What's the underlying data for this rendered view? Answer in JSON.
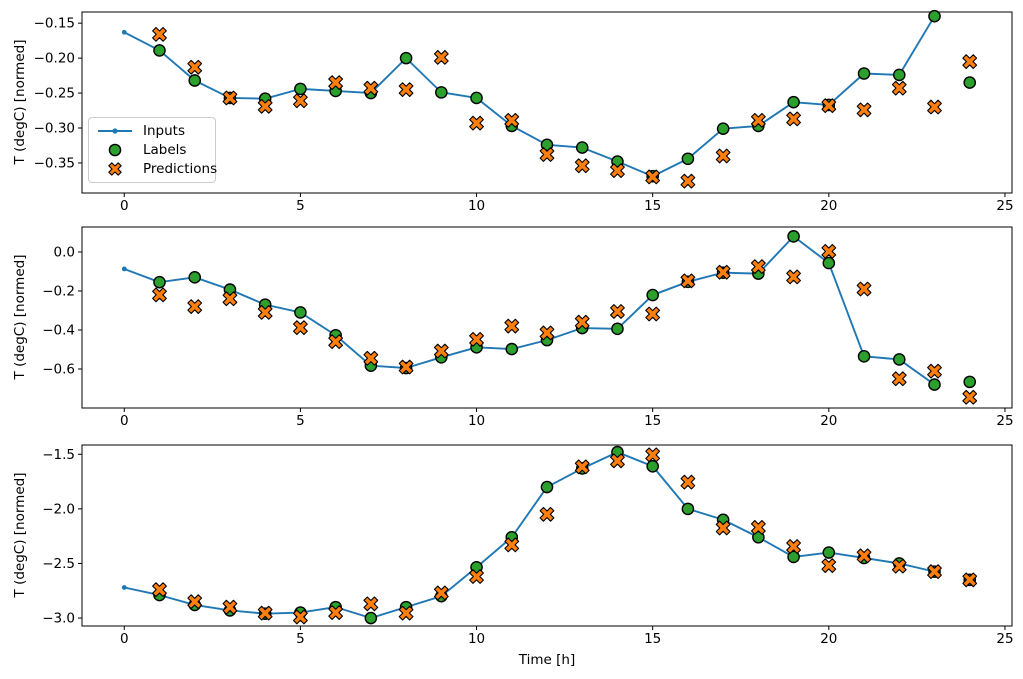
{
  "figure": {
    "background": "#ffffff",
    "xlabel": "Time [h]",
    "ylabel": "T (degC) [normed]"
  },
  "colors": {
    "inputs": "#1f77b4",
    "labels": "#2ca02c",
    "predictions": "#ff7f0e",
    "marker_edge": "#000000",
    "axis": "#000000",
    "legend_border": "#cccccc"
  },
  "legend": {
    "position": "upper-left-inside-first-subplot",
    "items": [
      {
        "label": "Inputs",
        "marker": "line-with-dot"
      },
      {
        "label": "Labels",
        "marker": "circle"
      },
      {
        "label": "Predictions",
        "marker": "X"
      }
    ]
  },
  "chart_data": [
    {
      "type": "line",
      "title": "",
      "xlabel": "",
      "ylabel": "T (degC) [normed]",
      "grid": false,
      "xlim": [
        -1.2,
        25.2
      ],
      "ylim": [
        -0.393,
        -0.134
      ],
      "xticks": [
        0,
        5,
        10,
        15,
        20,
        25
      ],
      "xtick_labels": [
        "0",
        "5",
        "10",
        "15",
        "20",
        "25"
      ],
      "yticks": [
        -0.15,
        -0.2,
        -0.25,
        -0.3,
        -0.35
      ],
      "ytick_labels": [
        "−0.15",
        "−0.20",
        "−0.25",
        "−0.30",
        "−0.35"
      ],
      "series": [
        {
          "name": "Inputs",
          "kind": "line",
          "marker": "dot",
          "x": [
            0,
            1,
            2,
            3,
            4,
            5,
            6,
            7,
            8,
            9,
            10,
            11,
            12,
            13,
            14,
            15,
            16,
            17,
            18,
            19,
            20,
            21,
            22,
            23
          ],
          "values": [
            -0.163,
            -0.189,
            -0.232,
            -0.257,
            -0.258,
            -0.244,
            -0.247,
            -0.25,
            -0.2,
            -0.249,
            -0.257,
            -0.297,
            -0.324,
            -0.328,
            -0.348,
            -0.369,
            -0.344,
            -0.301,
            -0.297,
            -0.263,
            -0.267,
            -0.222,
            -0.224,
            -0.14
          ]
        },
        {
          "name": "Labels",
          "kind": "scatter",
          "marker": "circle",
          "x": [
            1,
            2,
            3,
            4,
            5,
            6,
            7,
            8,
            9,
            10,
            11,
            12,
            13,
            14,
            15,
            16,
            17,
            18,
            19,
            20,
            21,
            22,
            23,
            24
          ],
          "values": [
            -0.189,
            -0.232,
            -0.257,
            -0.258,
            -0.244,
            -0.247,
            -0.25,
            -0.2,
            -0.249,
            -0.257,
            -0.297,
            -0.324,
            -0.328,
            -0.348,
            -0.369,
            -0.344,
            -0.301,
            -0.297,
            -0.263,
            -0.267,
            -0.222,
            -0.224,
            -0.14,
            -0.235
          ]
        },
        {
          "name": "Predictions",
          "kind": "scatter",
          "marker": "X",
          "x": [
            1,
            2,
            3,
            4,
            5,
            6,
            7,
            8,
            9,
            10,
            11,
            12,
            13,
            14,
            15,
            16,
            17,
            18,
            19,
            20,
            21,
            22,
            23,
            24
          ],
          "values": [
            -0.166,
            -0.213,
            -0.257,
            -0.269,
            -0.261,
            -0.235,
            -0.243,
            -0.245,
            -0.199,
            -0.293,
            -0.289,
            -0.338,
            -0.354,
            -0.361,
            -0.37,
            -0.376,
            -0.34,
            -0.289,
            -0.287,
            -0.268,
            -0.274,
            -0.243,
            -0.27,
            -0.205
          ]
        }
      ]
    },
    {
      "type": "line",
      "title": "",
      "xlabel": "",
      "ylabel": "T (degC) [normed]",
      "grid": false,
      "xlim": [
        -1.2,
        25.2
      ],
      "ylim": [
        -0.8,
        0.128
      ],
      "xticks": [
        0,
        5,
        10,
        15,
        20,
        25
      ],
      "xtick_labels": [
        "0",
        "5",
        "10",
        "15",
        "20",
        "25"
      ],
      "yticks": [
        0.0,
        -0.2,
        -0.4,
        -0.6
      ],
      "ytick_labels": [
        "0.0",
        "−0.2",
        "−0.4",
        "−0.6"
      ],
      "series": [
        {
          "name": "Inputs",
          "kind": "line",
          "marker": "dot",
          "x": [
            0,
            1,
            2,
            3,
            4,
            5,
            6,
            7,
            8,
            9,
            10,
            11,
            12,
            13,
            14,
            15,
            16,
            17,
            18,
            19,
            20,
            21,
            22,
            23
          ],
          "values": [
            -0.087,
            -0.155,
            -0.13,
            -0.193,
            -0.27,
            -0.31,
            -0.427,
            -0.583,
            -0.595,
            -0.54,
            -0.489,
            -0.498,
            -0.452,
            -0.39,
            -0.394,
            -0.221,
            -0.153,
            -0.106,
            -0.111,
            0.08,
            -0.057,
            -0.535,
            -0.551,
            -0.68
          ]
        },
        {
          "name": "Labels",
          "kind": "scatter",
          "marker": "circle",
          "x": [
            1,
            2,
            3,
            4,
            5,
            6,
            7,
            8,
            9,
            10,
            11,
            12,
            13,
            14,
            15,
            16,
            17,
            18,
            19,
            20,
            21,
            22,
            23,
            24
          ],
          "values": [
            -0.155,
            -0.13,
            -0.193,
            -0.27,
            -0.31,
            -0.427,
            -0.583,
            -0.595,
            -0.54,
            -0.489,
            -0.498,
            -0.452,
            -0.39,
            -0.394,
            -0.221,
            -0.153,
            -0.106,
            -0.111,
            0.08,
            -0.057,
            -0.535,
            -0.551,
            -0.68,
            -0.666
          ]
        },
        {
          "name": "Predictions",
          "kind": "scatter",
          "marker": "X",
          "x": [
            1,
            2,
            3,
            4,
            5,
            6,
            7,
            8,
            9,
            10,
            11,
            12,
            13,
            14,
            15,
            16,
            17,
            18,
            19,
            20,
            21,
            22,
            23,
            24
          ],
          "values": [
            -0.22,
            -0.28,
            -0.24,
            -0.31,
            -0.388,
            -0.46,
            -0.545,
            -0.59,
            -0.508,
            -0.448,
            -0.38,
            -0.415,
            -0.36,
            -0.305,
            -0.318,
            -0.148,
            -0.104,
            -0.075,
            -0.128,
            0.003,
            -0.19,
            -0.65,
            -0.611,
            -0.745
          ]
        }
      ]
    },
    {
      "type": "line",
      "title": "",
      "xlabel": "Time [h]",
      "ylabel": "T (degC) [normed]",
      "grid": false,
      "xlim": [
        -1.2,
        25.2
      ],
      "ylim": [
        -3.073,
        -1.415
      ],
      "xticks": [
        0,
        5,
        10,
        15,
        20,
        25
      ],
      "xtick_labels": [
        "0",
        "5",
        "10",
        "15",
        "20",
        "25"
      ],
      "yticks": [
        -1.5,
        -2.0,
        -2.5,
        -3.0
      ],
      "ytick_labels": [
        "−1.5",
        "−2.0",
        "−2.5",
        "−3.0"
      ],
      "series": [
        {
          "name": "Inputs",
          "kind": "line",
          "marker": "dot",
          "x": [
            0,
            1,
            2,
            3,
            4,
            5,
            6,
            7,
            8,
            9,
            10,
            11,
            12,
            13,
            14,
            15,
            16,
            17,
            18,
            19,
            20,
            21,
            22,
            23
          ],
          "values": [
            -2.72,
            -2.79,
            -2.88,
            -2.93,
            -2.96,
            -2.95,
            -2.9,
            -3.0,
            -2.9,
            -2.8,
            -2.535,
            -2.26,
            -1.8,
            -1.63,
            -1.48,
            -1.61,
            -2.0,
            -2.1,
            -2.26,
            -2.44,
            -2.4,
            -2.45,
            -2.5,
            -2.575
          ]
        },
        {
          "name": "Labels",
          "kind": "scatter",
          "marker": "circle",
          "x": [
            1,
            2,
            3,
            4,
            5,
            6,
            7,
            8,
            9,
            10,
            11,
            12,
            13,
            14,
            15,
            16,
            17,
            18,
            19,
            20,
            21,
            22,
            23,
            24
          ],
          "values": [
            -2.79,
            -2.88,
            -2.93,
            -2.96,
            -2.95,
            -2.9,
            -3.0,
            -2.9,
            -2.8,
            -2.535,
            -2.26,
            -1.8,
            -1.63,
            -1.48,
            -1.61,
            -2.0,
            -2.1,
            -2.26,
            -2.44,
            -2.4,
            -2.45,
            -2.5,
            -2.575,
            -2.65
          ]
        },
        {
          "name": "Predictions",
          "kind": "scatter",
          "marker": "X",
          "x": [
            1,
            2,
            3,
            4,
            5,
            6,
            7,
            8,
            9,
            10,
            11,
            12,
            13,
            14,
            15,
            16,
            17,
            18,
            19,
            20,
            21,
            22,
            23,
            24
          ],
          "values": [
            -2.74,
            -2.85,
            -2.9,
            -2.955,
            -2.99,
            -2.95,
            -2.87,
            -2.955,
            -2.77,
            -2.62,
            -2.33,
            -2.05,
            -1.615,
            -1.56,
            -1.505,
            -1.755,
            -2.175,
            -2.17,
            -2.345,
            -2.52,
            -2.43,
            -2.525,
            -2.575,
            -2.65
          ]
        }
      ]
    }
  ]
}
